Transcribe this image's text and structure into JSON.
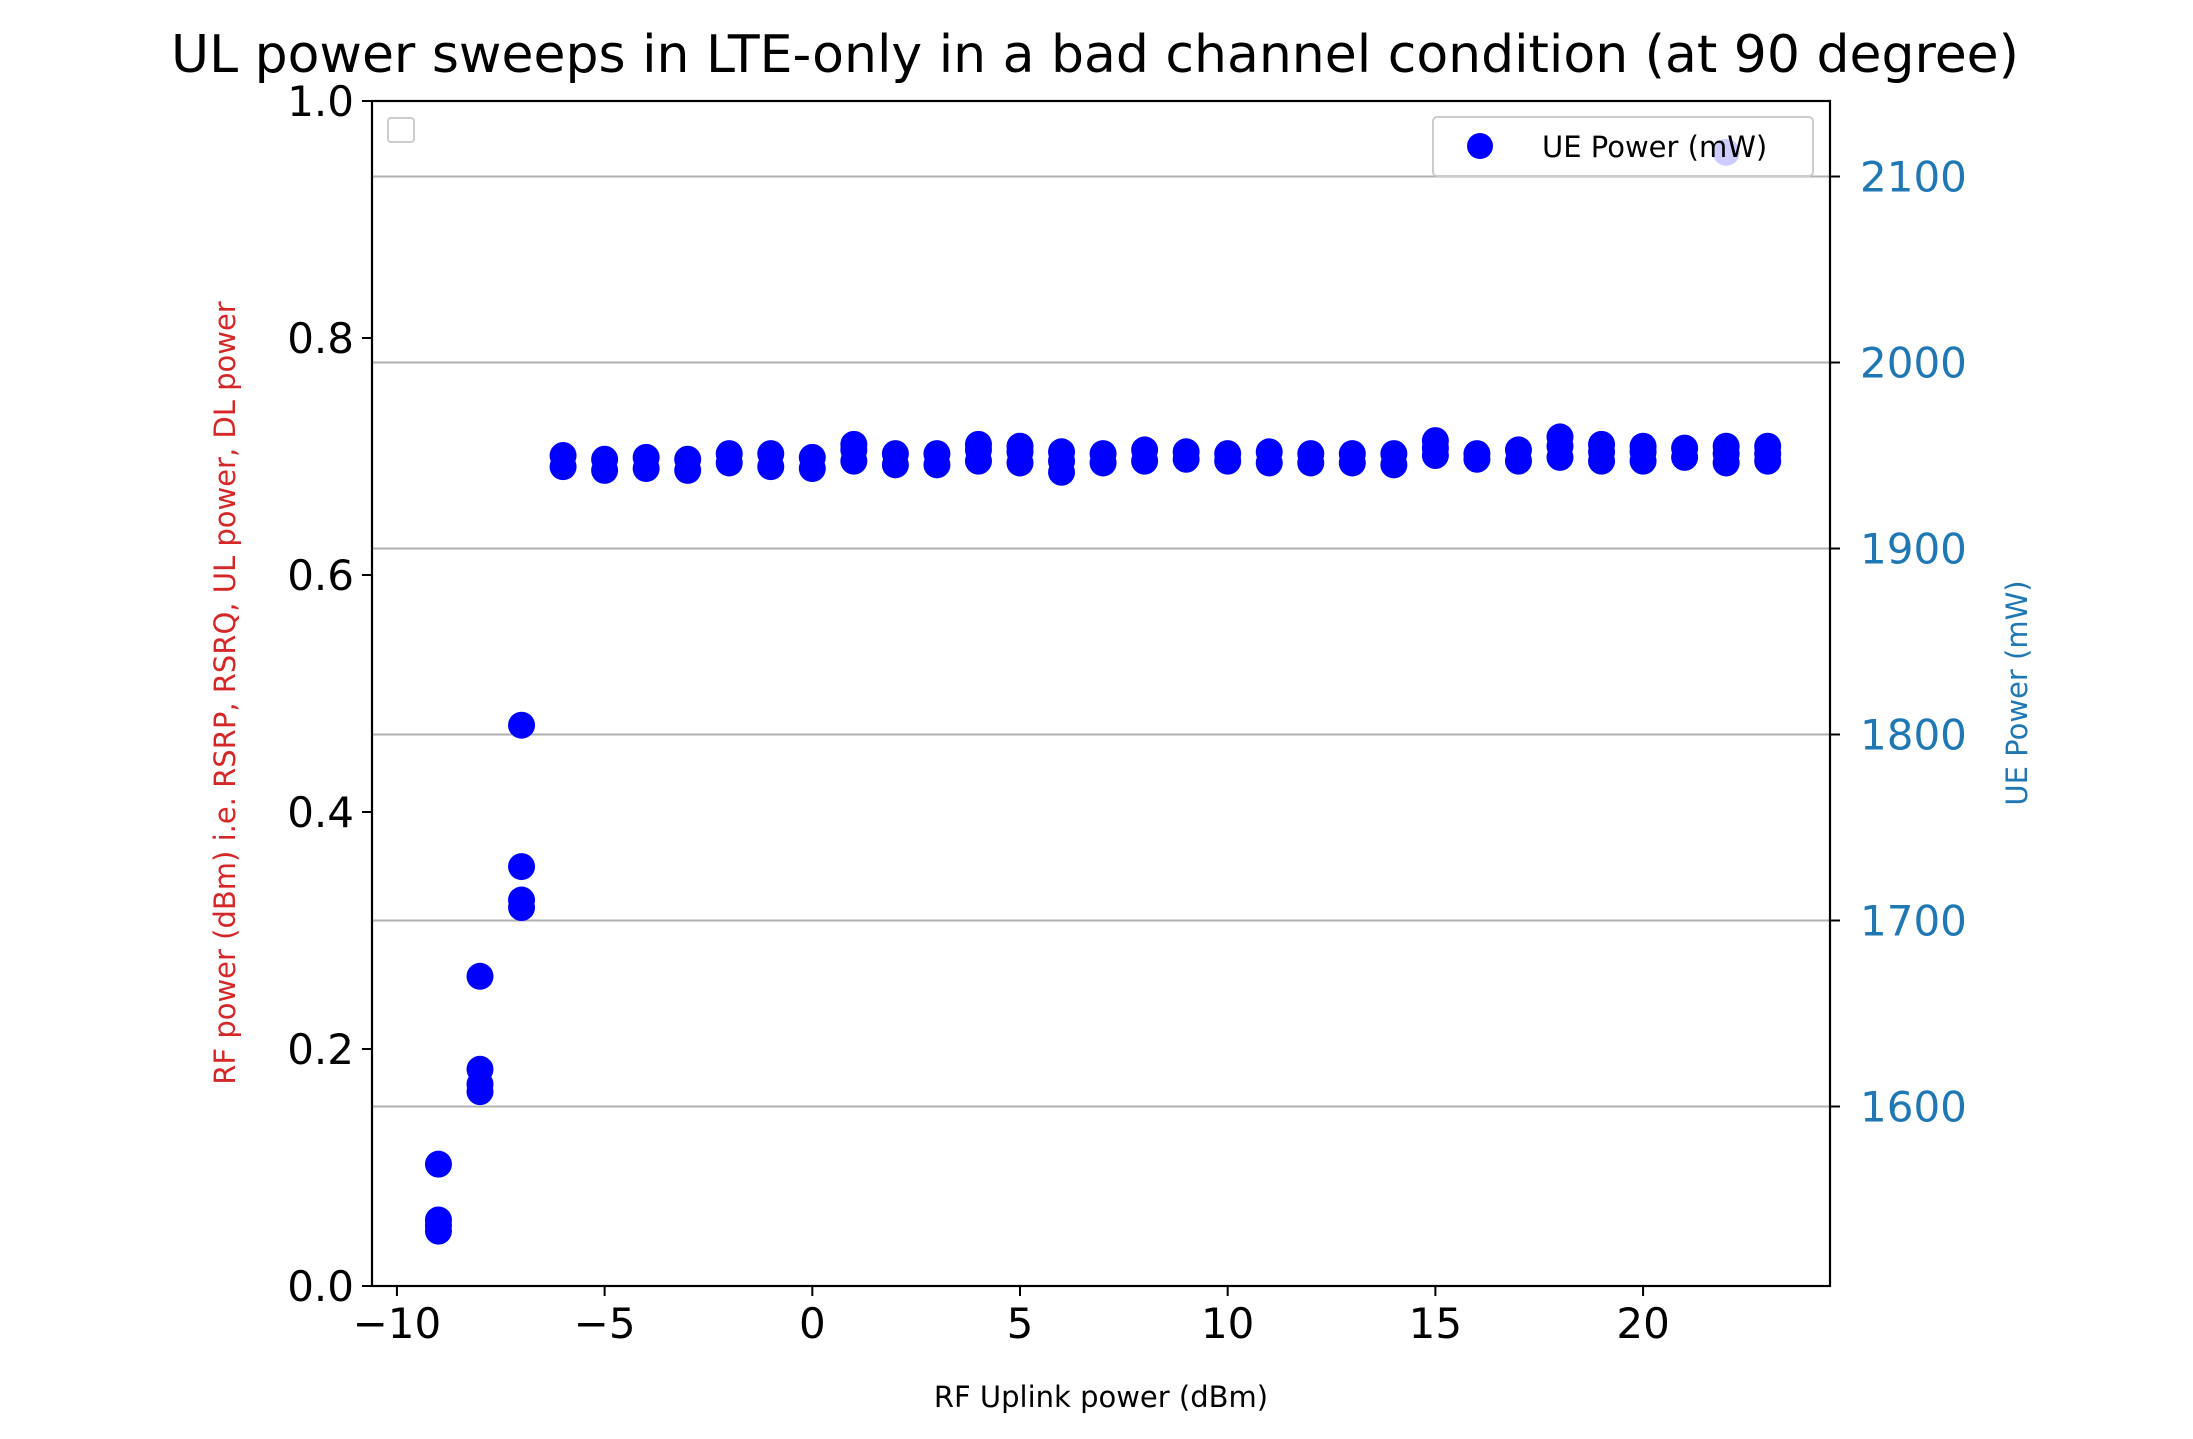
{
  "chart_data": {
    "type": "scatter",
    "title": "UL power sweeps in LTE-only in a bad channel condition (at 90 degree)",
    "xlabel": "RF Uplink power (dBm)",
    "ylabel_left": "RF power (dBm) i.e. RSRP, RSRQ, UL power, DL power",
    "ylabel_right": "UE Power (mW)",
    "xlim": [
      -10.6,
      24.5
    ],
    "ylim_left": [
      0.0,
      1.0
    ],
    "ylim_right": [
      1503.5,
      2140.6
    ],
    "x_ticks": [
      -10,
      -5,
      0,
      5,
      10,
      15,
      20
    ],
    "x_tick_labels": [
      "−10",
      "−5",
      "0",
      "5",
      "10",
      "15",
      "20"
    ],
    "y_left_ticks": [
      0.0,
      0.2,
      0.4,
      0.6,
      0.8,
      1.0
    ],
    "y_left_tick_labels": [
      "0.0",
      "0.2",
      "0.4",
      "0.6",
      "0.8",
      "1.0"
    ],
    "y_right_ticks": [
      1600,
      1700,
      1800,
      1900,
      2000,
      2100
    ],
    "y_right_tick_labels": [
      "1600",
      "1700",
      "1800",
      "1900",
      "2000",
      "2100"
    ],
    "grid": "horizontal lines at right-axis ticks",
    "legends": {
      "left": {
        "placement": "top-left",
        "entries": []
      },
      "right": {
        "placement": "top-right",
        "entries": [
          "UE Power (mW)"
        ]
      }
    },
    "colors": {
      "series": "#0000ff",
      "left_label": "#d62728",
      "right_axis": "#1f77b4",
      "grid": "#b0b0b0",
      "text": "#000000"
    },
    "series": [
      {
        "name": "UE Power (mW)",
        "axis": "right",
        "points": [
          {
            "x": -9,
            "y": 1533
          },
          {
            "x": -9,
            "y": 1536
          },
          {
            "x": -9,
            "y": 1539
          },
          {
            "x": -9,
            "y": 1569
          },
          {
            "x": -8,
            "y": 1608
          },
          {
            "x": -8,
            "y": 1612
          },
          {
            "x": -8,
            "y": 1620
          },
          {
            "x": -8,
            "y": 1670
          },
          {
            "x": -7,
            "y": 1707
          },
          {
            "x": -7,
            "y": 1711
          },
          {
            "x": -7,
            "y": 1729
          },
          {
            "x": -7,
            "y": 1805
          },
          {
            "x": -6,
            "y": 1944
          },
          {
            "x": -6,
            "y": 1950
          },
          {
            "x": -5,
            "y": 1942
          },
          {
            "x": -5,
            "y": 1948
          },
          {
            "x": -4,
            "y": 1943
          },
          {
            "x": -4,
            "y": 1949
          },
          {
            "x": -3,
            "y": 1942
          },
          {
            "x": -3,
            "y": 1948
          },
          {
            "x": -2,
            "y": 1946
          },
          {
            "x": -2,
            "y": 1951
          },
          {
            "x": -1,
            "y": 1944
          },
          {
            "x": -1,
            "y": 1951
          },
          {
            "x": 0,
            "y": 1943
          },
          {
            "x": 0,
            "y": 1949
          },
          {
            "x": 1,
            "y": 1947
          },
          {
            "x": 1,
            "y": 1953
          },
          {
            "x": 1,
            "y": 1956
          },
          {
            "x": 2,
            "y": 1945
          },
          {
            "x": 2,
            "y": 1951
          },
          {
            "x": 3,
            "y": 1945
          },
          {
            "x": 3,
            "y": 1951
          },
          {
            "x": 4,
            "y": 1947
          },
          {
            "x": 4,
            "y": 1953
          },
          {
            "x": 4,
            "y": 1956
          },
          {
            "x": 5,
            "y": 1946
          },
          {
            "x": 5,
            "y": 1952
          },
          {
            "x": 5,
            "y": 1955
          },
          {
            "x": 6,
            "y": 1941
          },
          {
            "x": 6,
            "y": 1947
          },
          {
            "x": 6,
            "y": 1952
          },
          {
            "x": 7,
            "y": 1946
          },
          {
            "x": 7,
            "y": 1951
          },
          {
            "x": 8,
            "y": 1947
          },
          {
            "x": 8,
            "y": 1953
          },
          {
            "x": 9,
            "y": 1948
          },
          {
            "x": 9,
            "y": 1952
          },
          {
            "x": 10,
            "y": 1947
          },
          {
            "x": 10,
            "y": 1951
          },
          {
            "x": 11,
            "y": 1946
          },
          {
            "x": 11,
            "y": 1952
          },
          {
            "x": 12,
            "y": 1946
          },
          {
            "x": 12,
            "y": 1951
          },
          {
            "x": 13,
            "y": 1946
          },
          {
            "x": 13,
            "y": 1951
          },
          {
            "x": 14,
            "y": 1945
          },
          {
            "x": 14,
            "y": 1951
          },
          {
            "x": 15,
            "y": 1950
          },
          {
            "x": 15,
            "y": 1954
          },
          {
            "x": 15,
            "y": 1958
          },
          {
            "x": 16,
            "y": 1948
          },
          {
            "x": 16,
            "y": 1951
          },
          {
            "x": 17,
            "y": 1947
          },
          {
            "x": 17,
            "y": 1953
          },
          {
            "x": 18,
            "y": 1949
          },
          {
            "x": 18,
            "y": 1955
          },
          {
            "x": 18,
            "y": 1960
          },
          {
            "x": 19,
            "y": 1947
          },
          {
            "x": 19,
            "y": 1952
          },
          {
            "x": 19,
            "y": 1956
          },
          {
            "x": 20,
            "y": 1947
          },
          {
            "x": 20,
            "y": 1952
          },
          {
            "x": 20,
            "y": 1955
          },
          {
            "x": 21,
            "y": 1949
          },
          {
            "x": 21,
            "y": 1954
          },
          {
            "x": 22,
            "y": 1946
          },
          {
            "x": 22,
            "y": 1951
          },
          {
            "x": 22,
            "y": 1955
          },
          {
            "x": 22,
            "y": 2113
          },
          {
            "x": 23,
            "y": 1947
          },
          {
            "x": 23,
            "y": 1951
          },
          {
            "x": 23,
            "y": 1955
          }
        ]
      }
    ]
  }
}
